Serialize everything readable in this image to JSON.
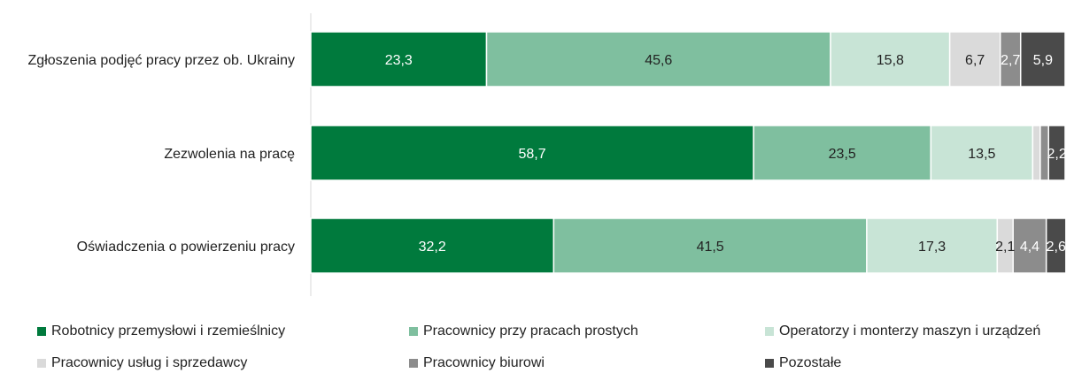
{
  "chart_data": {
    "type": "bar",
    "orientation": "horizontal",
    "stacked": true,
    "categories": [
      "Zgłoszenia podjęć pracy przez ob. Ukrainy",
      "Zezwolenia na pracę",
      "Oświadczenia o powierzeniu pracy"
    ],
    "series": [
      {
        "name": "Robotnicy przemysłowi i rzemieślnicy",
        "color": "#007A3D",
        "label_color": "#ffffff",
        "values": [
          23.3,
          58.7,
          32.2
        ],
        "labels": [
          "23,3",
          "58,7",
          "32,2"
        ]
      },
      {
        "name": "Pracownicy przy pracach prostych",
        "color": "#7FBF9F",
        "label_color": "#222222",
        "values": [
          45.6,
          23.5,
          41.5
        ],
        "labels": [
          "45,6",
          "23,5",
          "41,5"
        ]
      },
      {
        "name": "Operatorzy i monterzy maszyn i urządzeń",
        "color": "#C8E4D6",
        "label_color": "#222222",
        "values": [
          15.8,
          13.5,
          17.3
        ],
        "labels": [
          "15,8",
          "13,5",
          "17,3"
        ]
      },
      {
        "name": "Pracownicy usług i sprzedawcy",
        "color": "#DADADA",
        "label_color": "#222222",
        "values": [
          6.7,
          1.0,
          2.1
        ],
        "labels": [
          "6,7",
          "",
          "2,1"
        ]
      },
      {
        "name": "Pracownicy biurowi",
        "color": "#8C8C8C",
        "label_color": "#ffffff",
        "values": [
          2.7,
          1.1,
          4.4
        ],
        "labels": [
          "2,7",
          "",
          "4,4"
        ]
      },
      {
        "name": "Pozostałe",
        "color": "#4A4A4A",
        "label_color": "#ffffff",
        "values": [
          5.9,
          2.2,
          2.6
        ],
        "labels": [
          "5,9",
          "2,2",
          "2,6"
        ]
      }
    ],
    "xlim": [
      0,
      100
    ],
    "title": "",
    "xlabel": "",
    "ylabel": "",
    "grid": false,
    "legend_position": "bottom"
  }
}
